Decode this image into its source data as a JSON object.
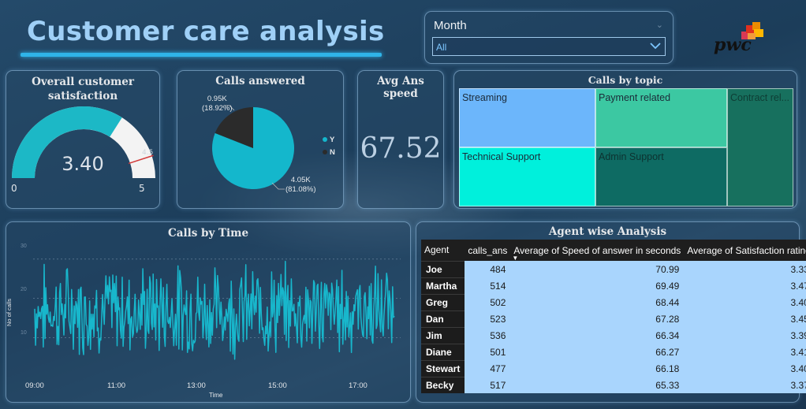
{
  "header": {
    "title": "Customer care analysis",
    "logo_text": "pwc"
  },
  "slicer": {
    "label": "Month",
    "value": "All"
  },
  "satisfaction": {
    "title_line1": "Overall customer",
    "title_line2": "satisfaction",
    "value": 3.4,
    "value_text": "3.40",
    "min": 0,
    "min_text": "0",
    "max": 5,
    "max_text": "5",
    "target": 4.5,
    "target_text": "4.5"
  },
  "calls_answered": {
    "title": "Calls answered",
    "chart_data": {
      "type": "pie",
      "slices": [
        {
          "name": "Y",
          "value": 4.05,
          "label": "4.05K",
          "pct": "(81.08%)"
        },
        {
          "name": "N",
          "value": 0.95,
          "label": "0.95K",
          "pct": "(18.92%)"
        }
      ]
    },
    "legend": [
      "Y",
      "N"
    ]
  },
  "avg_speed": {
    "title": "Avg Ans speed",
    "value": "67.52"
  },
  "calls_by_topic": {
    "title": "Calls by topic",
    "topics": [
      "Streaming",
      "Payment related",
      "Contract rel...",
      "Technical Support",
      "Admin Support"
    ]
  },
  "calls_by_time": {
    "title": "Calls by Time",
    "xlabel": "Time",
    "ylabel": "No of calls",
    "x_ticks": [
      "09:00",
      "11:00",
      "13:00",
      "15:00",
      "17:00"
    ],
    "y_ticks": [
      "30",
      "20",
      "10"
    ],
    "ylim": [
      0,
      35
    ]
  },
  "agent_table": {
    "title": "Agent wise Analysis",
    "columns": [
      "Agent",
      "calls_ans",
      "Average of Speed of answer in seconds",
      "Average of Satisfaction rating"
    ],
    "rows": [
      [
        "Joe",
        "484",
        "70.99",
        "3.33"
      ],
      [
        "Martha",
        "514",
        "69.49",
        "3.47"
      ],
      [
        "Greg",
        "502",
        "68.44",
        "3.40"
      ],
      [
        "Dan",
        "523",
        "67.28",
        "3.45"
      ],
      [
        "Jim",
        "536",
        "66.34",
        "3.39"
      ],
      [
        "Diane",
        "501",
        "66.27",
        "3.41"
      ],
      [
        "Stewart",
        "477",
        "66.18",
        "3.40"
      ],
      [
        "Becky",
        "517",
        "65.33",
        "3.37"
      ]
    ]
  },
  "colors": {
    "accent": "#2fb4e8",
    "gauge_fill": "#1cb8c6",
    "pie_y": "#14b7cc",
    "pie_n": "#2b2b2b",
    "line": "#18b7cc"
  }
}
